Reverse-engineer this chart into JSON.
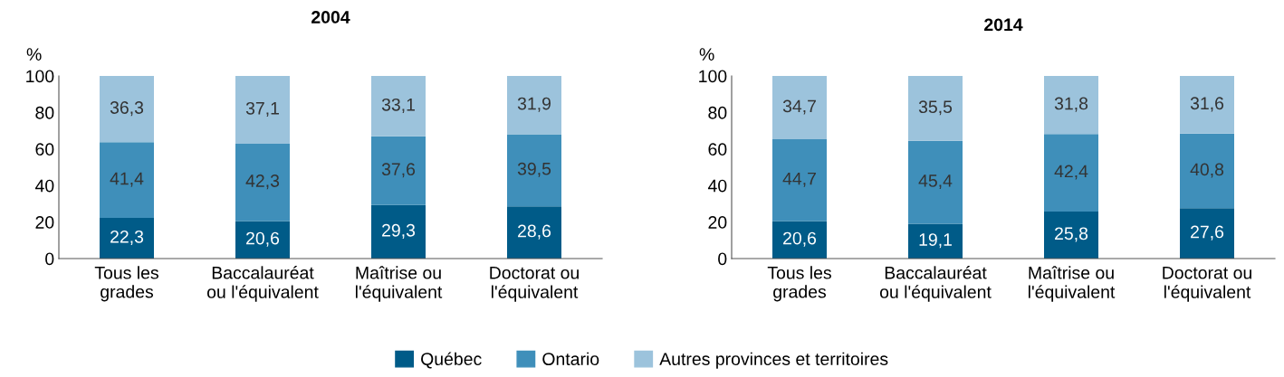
{
  "chart_data": [
    {
      "type": "bar",
      "title": "2004",
      "ylabel": "%",
      "stacked": true,
      "legend": "bottom",
      "grid": false,
      "categories": [
        "Tous les\ngrades",
        "Baccalauréat\nou l'équivalent",
        "Maîtrise ou\nl'équivalent",
        "Doctorat ou\nl'équivalent"
      ],
      "ylim": [
        0,
        100
      ],
      "yticks": [
        0,
        20,
        40,
        60,
        80,
        100
      ],
      "series": [
        {
          "name": "Québec",
          "color": "#005b88",
          "values": [
            22.3,
            20.6,
            29.3,
            28.6
          ],
          "value_labels": [
            "22,3",
            "20,6",
            "29,3",
            "28,6"
          ]
        },
        {
          "name": "Ontario",
          "color": "#3f8fba",
          "values": [
            41.4,
            42.3,
            37.6,
            39.5
          ],
          "value_labels": [
            "41,4",
            "42,3",
            "37,6",
            "39,5"
          ]
        },
        {
          "name": "Autres provinces et territoires",
          "color": "#9cc3dc",
          "values": [
            36.3,
            37.1,
            33.1,
            31.9
          ],
          "value_labels": [
            "36,3",
            "37,1",
            "33,1",
            "31,9"
          ]
        }
      ]
    },
    {
      "type": "bar",
      "title": "2014",
      "ylabel": "%",
      "stacked": true,
      "legend": "bottom",
      "grid": false,
      "categories": [
        "Tous les\ngrades",
        "Baccalauréat\nou l'équivalent",
        "Maîtrise ou\nl'équivalent",
        "Doctorat ou\nl'équivalent"
      ],
      "ylim": [
        0,
        100
      ],
      "yticks": [
        0,
        20,
        40,
        60,
        80,
        100
      ],
      "series": [
        {
          "name": "Québec",
          "color": "#005b88",
          "values": [
            20.6,
            19.1,
            25.8,
            27.6
          ],
          "value_labels": [
            "20,6",
            "19,1",
            "25,8",
            "27,6"
          ]
        },
        {
          "name": "Ontario",
          "color": "#3f8fba",
          "values": [
            44.7,
            45.4,
            42.4,
            40.8
          ],
          "value_labels": [
            "44,7",
            "45,4",
            "42,4",
            "40,8"
          ]
        },
        {
          "name": "Autres provinces et territoires",
          "color": "#9cc3dc",
          "values": [
            34.7,
            35.5,
            31.8,
            31.6
          ],
          "value_labels": [
            "34,7",
            "35,5",
            "31,8",
            "31,6"
          ]
        }
      ]
    }
  ]
}
